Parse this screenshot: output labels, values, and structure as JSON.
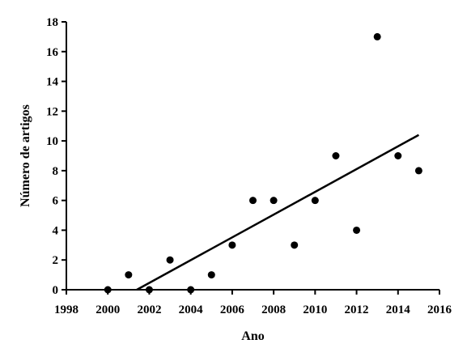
{
  "chart_data": {
    "type": "scatter",
    "title": "",
    "xlabel": "Ano",
    "ylabel": "Número de artigos",
    "xlim": [
      1998,
      2016
    ],
    "ylim": [
      0,
      18
    ],
    "xticks": [
      1998,
      2000,
      2002,
      2004,
      2006,
      2008,
      2010,
      2012,
      2014,
      2016
    ],
    "yticks": [
      0,
      2,
      4,
      6,
      8,
      10,
      12,
      14,
      16,
      18
    ],
    "grid": false,
    "legend": "none",
    "series": [
      {
        "points": [
          {
            "x": 2000,
            "y": 0
          },
          {
            "x": 2001,
            "y": 1
          },
          {
            "x": 2002,
            "y": 0
          },
          {
            "x": 2003,
            "y": 2
          },
          {
            "x": 2004,
            "y": 0
          },
          {
            "x": 2005,
            "y": 1
          },
          {
            "x": 2006,
            "y": 3
          },
          {
            "x": 2007,
            "y": 6
          },
          {
            "x": 2008,
            "y": 6
          },
          {
            "x": 2009,
            "y": 3
          },
          {
            "x": 2010,
            "y": 6
          },
          {
            "x": 2011,
            "y": 9
          },
          {
            "x": 2012,
            "y": 4
          },
          {
            "x": 2013,
            "y": 17
          },
          {
            "x": 2014,
            "y": 9
          },
          {
            "x": 2015,
            "y": 8
          }
        ]
      }
    ],
    "trendline": {
      "type": "linear",
      "start": {
        "x": 2001.4,
        "y": 0
      },
      "end": {
        "x": 2015,
        "y": 10.4
      }
    },
    "colors": {
      "marker": "#000000",
      "line": "#000000",
      "axis": "#000000"
    }
  }
}
